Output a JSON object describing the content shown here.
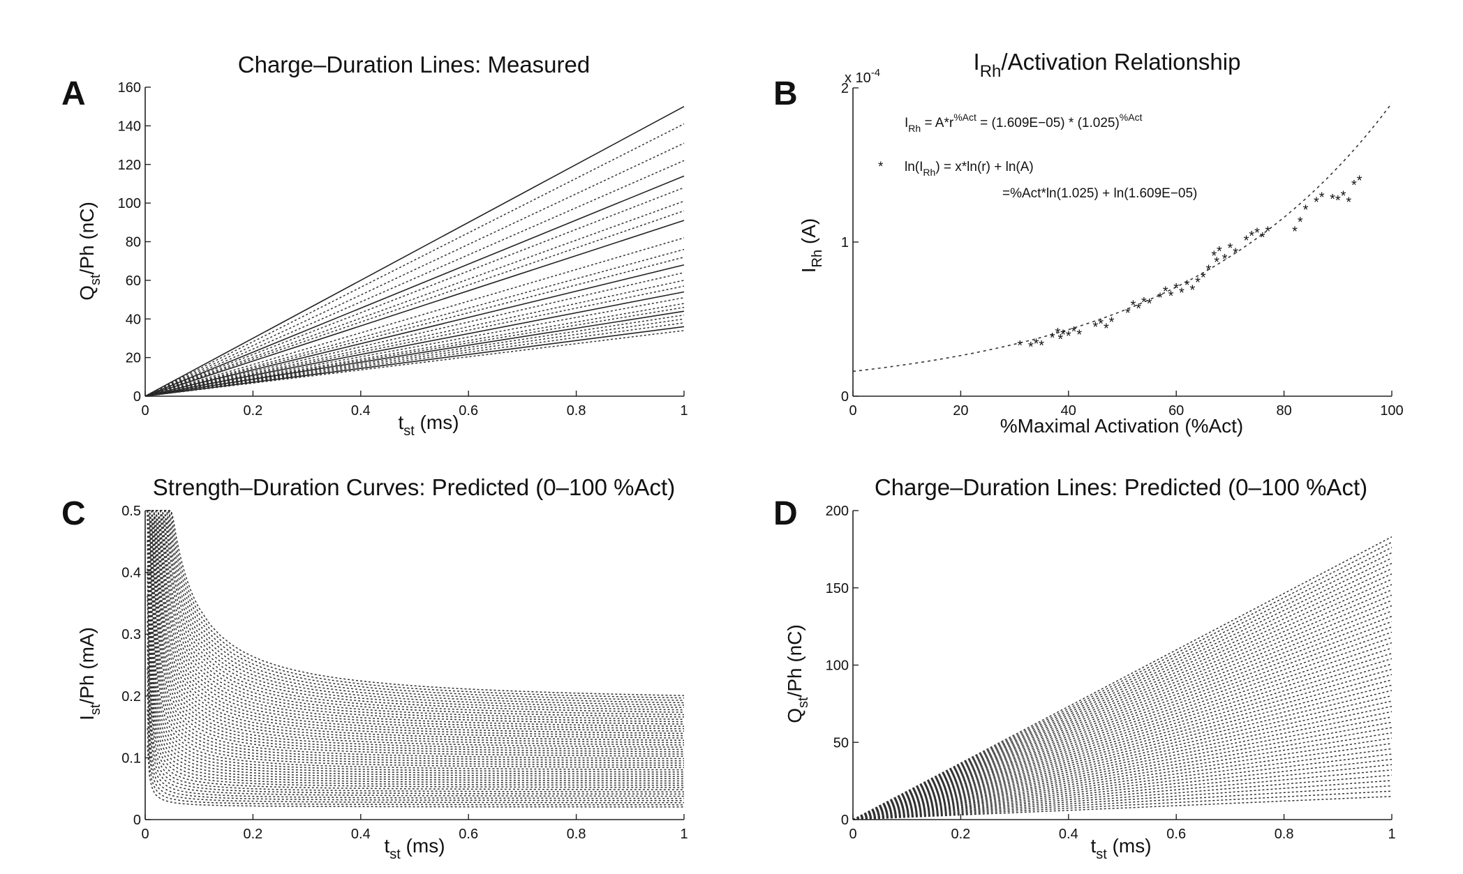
{
  "chart_data": [
    {
      "id": "A",
      "panel_letter": "A",
      "type": "line",
      "title": "Charge–Duration Lines: Measured",
      "ylabel_main": "Q",
      "ylabel_sub": "st",
      "ylabel_rest": "/Ph (nC)",
      "xlabel_main": "t",
      "xlabel_sub": "st",
      "xlabel_rest": " (ms)",
      "xlim": [
        0,
        1
      ],
      "ylim": [
        0,
        160
      ],
      "xticks": [
        0,
        0.2,
        0.4,
        0.6,
        0.8,
        1
      ],
      "xtick_labels": [
        "0",
        "0.2",
        "0.4",
        "0.6",
        "0.8",
        "1"
      ],
      "yticks": [
        0,
        20,
        40,
        60,
        80,
        100,
        120,
        140,
        160
      ],
      "ytick_labels": [
        "0",
        "20",
        "40",
        "60",
        "80",
        "100",
        "120",
        "140",
        "160"
      ],
      "series": [
        {
          "name": "line-1",
          "x": [
            0,
            1
          ],
          "y": [
            0,
            150
          ]
        },
        {
          "name": "line-2",
          "x": [
            0,
            1
          ],
          "y": [
            0,
            141
          ]
        },
        {
          "name": "line-3",
          "x": [
            0,
            1
          ],
          "y": [
            0,
            131
          ]
        },
        {
          "name": "line-4",
          "x": [
            0,
            1
          ],
          "y": [
            0,
            122
          ]
        },
        {
          "name": "line-5",
          "x": [
            0,
            1
          ],
          "y": [
            0,
            114
          ]
        },
        {
          "name": "line-6",
          "x": [
            0,
            1
          ],
          "y": [
            0,
            108
          ]
        },
        {
          "name": "line-7",
          "x": [
            0,
            1
          ],
          "y": [
            0,
            101
          ]
        },
        {
          "name": "line-8",
          "x": [
            0,
            1
          ],
          "y": [
            0,
            96
          ]
        },
        {
          "name": "line-9",
          "x": [
            0,
            1
          ],
          "y": [
            0,
            91
          ]
        },
        {
          "name": "line-10",
          "x": [
            0,
            1
          ],
          "y": [
            0,
            82
          ]
        },
        {
          "name": "line-11",
          "x": [
            0,
            1
          ],
          "y": [
            0,
            76
          ]
        },
        {
          "name": "line-12",
          "x": [
            0,
            1
          ],
          "y": [
            0,
            72
          ]
        },
        {
          "name": "line-13",
          "x": [
            0,
            1
          ],
          "y": [
            0,
            68
          ]
        },
        {
          "name": "line-14",
          "x": [
            0,
            1
          ],
          "y": [
            0,
            64
          ]
        },
        {
          "name": "line-15",
          "x": [
            0,
            1
          ],
          "y": [
            0,
            60
          ]
        },
        {
          "name": "line-16",
          "x": [
            0,
            1
          ],
          "y": [
            0,
            57
          ]
        },
        {
          "name": "line-17",
          "x": [
            0,
            1
          ],
          "y": [
            0,
            54
          ]
        },
        {
          "name": "line-18",
          "x": [
            0,
            1
          ],
          "y": [
            0,
            51
          ]
        },
        {
          "name": "line-19",
          "x": [
            0,
            1
          ],
          "y": [
            0,
            48
          ]
        },
        {
          "name": "line-20",
          "x": [
            0,
            1
          ],
          "y": [
            0,
            46
          ]
        },
        {
          "name": "line-21",
          "x": [
            0,
            1
          ],
          "y": [
            0,
            44
          ]
        },
        {
          "name": "line-22",
          "x": [
            0,
            1
          ],
          "y": [
            0,
            42
          ]
        },
        {
          "name": "line-23",
          "x": [
            0,
            1
          ],
          "y": [
            0,
            40
          ]
        },
        {
          "name": "line-24",
          "x": [
            0,
            1
          ],
          "y": [
            0,
            38
          ]
        },
        {
          "name": "line-25",
          "x": [
            0,
            1
          ],
          "y": [
            0,
            36
          ]
        },
        {
          "name": "line-26",
          "x": [
            0,
            1
          ],
          "y": [
            0,
            34
          ]
        }
      ]
    },
    {
      "id": "B",
      "panel_letter": "B",
      "type": "scatter",
      "title_main": "I",
      "title_sub": "Rh",
      "title_rest": "/Activation Relationship",
      "ylabel_main": "I",
      "ylabel_sub": "Rh",
      "ylabel_rest": " (A)",
      "xlabel": "%Maximal Activation (%Act)",
      "xlim": [
        0,
        100
      ],
      "ylim": [
        0,
        0.0002
      ],
      "scale_label": "x 10",
      "scale_exp": "-4",
      "xticks": [
        0,
        20,
        40,
        60,
        80,
        100
      ],
      "xtick_labels": [
        "0",
        "20",
        "40",
        "60",
        "80",
        "100"
      ],
      "yticks": [
        0,
        0.0001,
        0.0002
      ],
      "ytick_labels": [
        "0",
        "1",
        "2"
      ],
      "fit": {
        "A": 1.609e-05,
        "r": 1.025
      },
      "annotations": {
        "eq1_lhs_main": "I",
        "eq1_lhs_sub": "Rh",
        "eq1_mid": " = A*r",
        "eq1_mid_sup": "%Act",
        "eq1_rhs": " = (1.609E−05) * (1.025)",
        "eq1_rhs_sup": "%Act",
        "eq2_pre": "ln(I",
        "eq2_sub": "Rh",
        "eq2_post": ") = x*ln(r) + ln(A)",
        "eq3": "=%Act*ln(1.025) + ln(1.609E−05)",
        "legend_marker": "*"
      },
      "points": {
        "x": [
          31,
          33,
          34,
          35,
          37,
          38,
          38.5,
          39,
          40,
          41,
          42,
          45,
          46,
          47,
          48,
          51,
          52,
          53,
          54,
          55,
          57,
          58,
          59,
          60,
          61,
          62,
          63,
          64,
          65,
          66,
          67,
          67.5,
          68,
          69,
          70,
          71,
          73,
          74,
          75,
          76,
          77,
          82,
          83,
          84,
          86,
          87,
          89,
          90,
          91,
          92,
          93,
          94
        ],
        "y": [
          3.4e-05,
          3.3e-05,
          3.5e-05,
          3.4e-05,
          3.9e-05,
          4.2e-05,
          3.8e-05,
          4.1e-05,
          4e-05,
          4.3e-05,
          4.1e-05,
          4.6e-05,
          4.8e-05,
          4.5e-05,
          4.9e-05,
          5.5e-05,
          6e-05,
          5.8e-05,
          6.2e-05,
          6.1e-05,
          6.5e-05,
          6.9e-05,
          6.6e-05,
          7.1e-05,
          6.8e-05,
          7.3e-05,
          7e-05,
          7.5e-05,
          7.8e-05,
          8.3e-05,
          9.2e-05,
          8.8e-05,
          9.5e-05,
          9e-05,
          9.7e-05,
          9.4e-05,
          0.000102,
          0.000105,
          0.000107,
          0.000104,
          0.000108,
          0.000108,
          0.000114,
          0.000122,
          0.000127,
          0.00013,
          0.000129,
          0.000128,
          0.000131,
          0.000127,
          0.000138,
          0.000141
        ]
      }
    },
    {
      "id": "C",
      "panel_letter": "C",
      "type": "line",
      "title": "Strength–Duration Curves: Predicted (0–100 %Act)",
      "ylabel_main": "I",
      "ylabel_sub": "st",
      "ylabel_rest": "/Ph (mA)",
      "xlabel_main": "t",
      "xlabel_sub": "st",
      "xlabel_rest": " (ms)",
      "xlim": [
        0,
        1
      ],
      "ylim": [
        0,
        0.5
      ],
      "xticks": [
        0,
        0.2,
        0.4,
        0.6,
        0.8,
        1
      ],
      "xtick_labels": [
        "0",
        "0.2",
        "0.4",
        "0.6",
        "0.8",
        "1"
      ],
      "yticks": [
        0,
        0.1,
        0.2,
        0.3,
        0.4,
        0.5
      ],
      "ytick_labels": [
        "0",
        "0.1",
        "0.2",
        "0.3",
        "0.4",
        "0.5"
      ],
      "curve_family": {
        "count": 50,
        "rheobase_min": 0.02,
        "rheobase_max": 0.185,
        "tau_min": 0.02,
        "tau_max": 0.085,
        "t_min": 0.004,
        "y_max": 0.5
      }
    },
    {
      "id": "D",
      "panel_letter": "D",
      "type": "line",
      "title": "Charge–Duration Lines: Predicted (0–100 %Act)",
      "ylabel_main": "Q",
      "ylabel_sub": "st",
      "ylabel_rest": "/Ph (nC)",
      "xlabel_main": "t",
      "xlabel_sub": "st",
      "xlabel_rest": " (ms)",
      "xlim": [
        0,
        1
      ],
      "ylim": [
        0,
        200
      ],
      "xticks": [
        0,
        0.2,
        0.4,
        0.6,
        0.8,
        1
      ],
      "xtick_labels": [
        "0",
        "0.2",
        "0.4",
        "0.6",
        "0.8",
        "1"
      ],
      "yticks": [
        0,
        50,
        100,
        150,
        200
      ],
      "ytick_labels": [
        "0",
        "50",
        "100",
        "150",
        "200"
      ],
      "line_family": {
        "count": 50,
        "slope_min": 15,
        "slope_max": 183
      }
    }
  ]
}
